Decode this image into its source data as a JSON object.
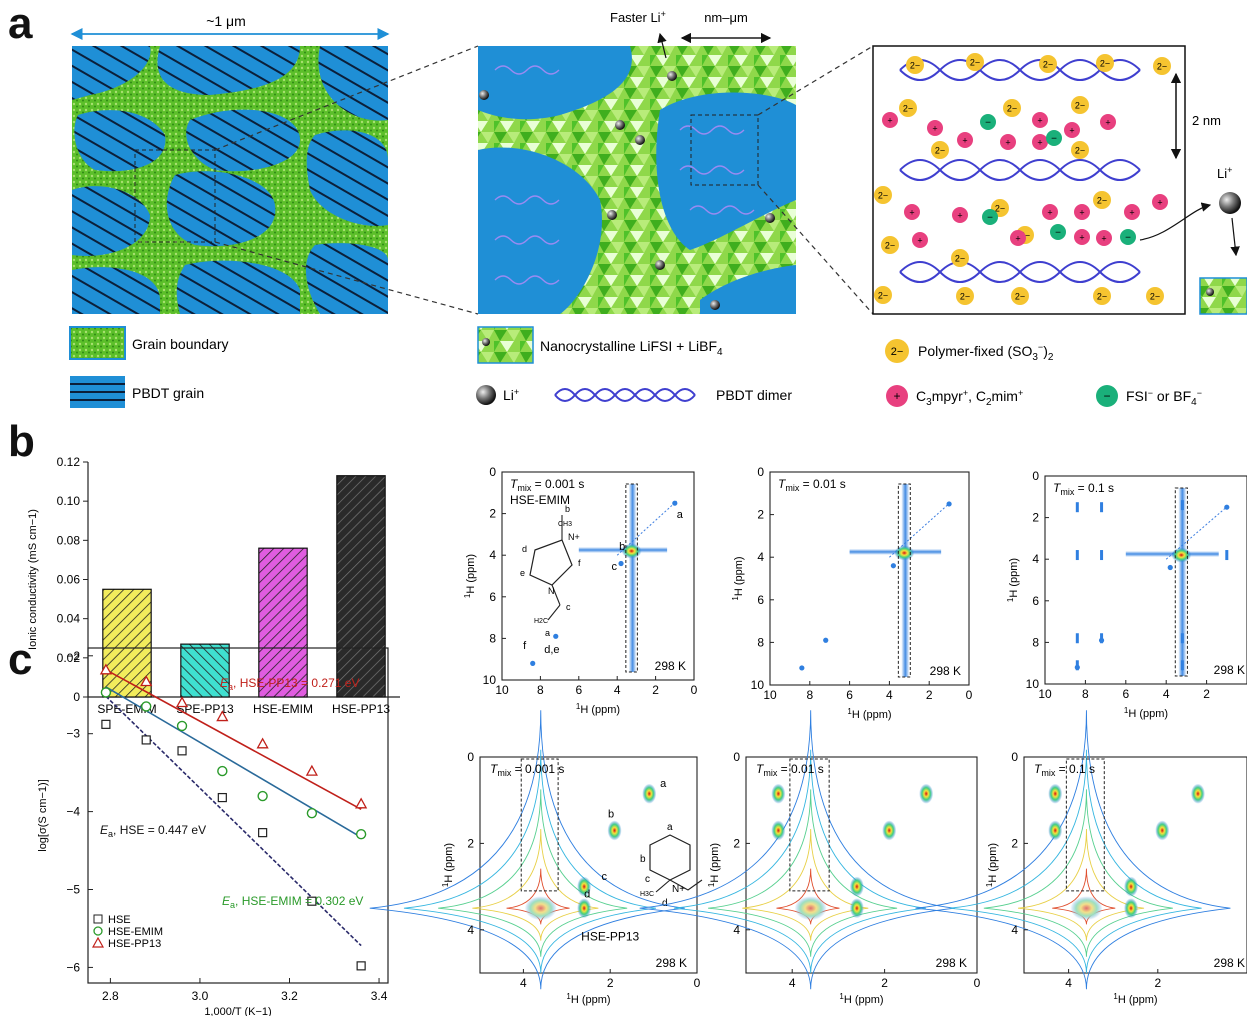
{
  "panels": {
    "a": "a",
    "b": "b",
    "c": "c"
  },
  "panel_a": {
    "scale_left": "~1 μm",
    "faster_li": "Faster Li",
    "faster_li_sup": "+",
    "scale_mid": "nm–μm",
    "scale_right": "2 nm",
    "li_label": "Li",
    "li_label_sup": "+",
    "charge_2minus": "2−",
    "charge_plus": "+",
    "charge_minus": "−",
    "legend": {
      "grain_boundary": "Grain boundary",
      "pbdt_grain": "PBDT grain",
      "nanocrystalline": "Nanocrystalline LiFSI + LiBF",
      "nanocrystalline_sub": "4",
      "li": "Li",
      "li_sup": "+",
      "pbdt_dimer": "PBDT dimer",
      "polymer_fixed": "Polymer-fixed (SO",
      "polymer_fixed_sub": "3",
      "polymer_fixed_sup": "−",
      "polymer_fixed_end": ")",
      "polymer_fixed_sub2": "2",
      "cations_1": "C",
      "cations_2": "3",
      "cations_3": "mpyr",
      "cations_4": "+",
      "cations_5": ", C",
      "cations_6": "2",
      "cations_7": "mim",
      "cations_8": "+",
      "anions_1": "FSI",
      "anions_2": "−",
      "anions_3": " or BF",
      "anions_4": "4",
      "anions_5": "−"
    },
    "colors": {
      "grain_blue": "#1f8fd6",
      "grain_green": "#5cbf2a",
      "cation": "#e8407f",
      "anion": "#1ab07a",
      "fixed": "#f5c430",
      "helix": "#3f3fcf"
    }
  },
  "chart_data": [
    {
      "type": "bar",
      "categories": [
        "SPE-EMIM",
        "SPE-PP13",
        "HSE-EMIM",
        "HSE-PP13"
      ],
      "values": [
        0.055,
        0.027,
        0.076,
        0.113
      ],
      "colors": [
        "#f2ec5c",
        "#3fe0d0",
        "#e05ce0",
        "#2a2a2a"
      ],
      "ylabel": "Ionic conductivity (mS cm−1)",
      "ylim": [
        0,
        0.12
      ],
      "yticks": [
        "0",
        "0.02",
        "0.04",
        "0.06",
        "0.08",
        "0.10",
        "0.12"
      ]
    },
    {
      "type": "scatter",
      "xlabel": "1,000/T (K−1)",
      "ylabel": "log[σ(S cm−1)]",
      "xlim": [
        2.75,
        3.42
      ],
      "ylim": [
        -6.2,
        -1.9
      ],
      "xticks": [
        "2.8",
        "3.0",
        "3.2",
        "3.4"
      ],
      "yticks": [
        "−2",
        "−3",
        "−4",
        "−5",
        "−6"
      ],
      "series": [
        {
          "name": "HSE",
          "marker": "square",
          "color": "#222222",
          "fit_color": "#2a2a6a",
          "x": [
            2.79,
            2.88,
            2.96,
            3.05,
            3.14,
            3.25,
            3.36
          ],
          "y": [
            -2.88,
            -3.08,
            -3.22,
            -3.82,
            -4.27,
            -5.15,
            -5.98
          ],
          "fit": [
            [
              2.79,
              -2.52
            ],
            [
              3.36,
              -5.72
            ]
          ]
        },
        {
          "name": "HSE-EMIM",
          "marker": "circle",
          "color": "#2a9a2a",
          "fit_color": "#2a6a9a",
          "x": [
            2.79,
            2.88,
            2.96,
            3.05,
            3.14,
            3.25,
            3.36
          ],
          "y": [
            -2.47,
            -2.65,
            -2.9,
            -3.48,
            -3.8,
            -4.02,
            -4.29
          ],
          "fit": [
            [
              2.79,
              -2.4
            ],
            [
              3.36,
              -4.33
            ]
          ]
        },
        {
          "name": "HSE-PP13",
          "marker": "triangle",
          "color": "#c0201a",
          "fit_color": "#c0201a",
          "x": [
            2.79,
            2.88,
            2.96,
            3.05,
            3.14,
            3.25,
            3.36
          ],
          "y": [
            -2.18,
            -2.33,
            -2.6,
            -2.78,
            -3.13,
            -3.48,
            -3.9
          ],
          "fit": [
            [
              2.79,
              -2.18
            ],
            [
              3.36,
              -3.97
            ]
          ]
        }
      ],
      "annotations": {
        "ea_label": "E",
        "ea_sub": "a",
        "pp13": ", HSE-PP13 = 0.271 eV",
        "hse": ", HSE = 0.447 eV",
        "emim": ", HSE-EMIM = 0.302 eV"
      }
    }
  ],
  "nmr_b": {
    "tmix": [
      "T",
      "mix",
      " = 0.001 s",
      " = 0.01 s",
      " = 0.1 s"
    ],
    "sample": "HSE-EMIM",
    "temp": "298 K",
    "axis_h": "1",
    "axis_ppm": "H (ppm)",
    "xticks": [
      "10",
      "8",
      "6",
      "4",
      "2",
      "0"
    ],
    "yticks": [
      "0",
      "2",
      "4",
      "6",
      "8",
      "10"
    ],
    "peak_labels": [
      "a",
      "c",
      "f",
      "d,e",
      "b"
    ],
    "struct_labels": [
      "b",
      "CH3",
      "N+",
      "d",
      "f",
      "e",
      "N",
      "H2C",
      "c",
      "a"
    ]
  },
  "nmr_c": {
    "sample": "HSE-PP13",
    "temp": "298 K",
    "xticks": [
      "4",
      "2",
      "0"
    ],
    "yticks": [
      "0",
      "2",
      "4"
    ],
    "peak_labels": [
      "a",
      "b",
      "c",
      "d"
    ],
    "struct_labels": [
      "a",
      "b",
      "c",
      "H3C",
      "N+",
      "d"
    ]
  }
}
